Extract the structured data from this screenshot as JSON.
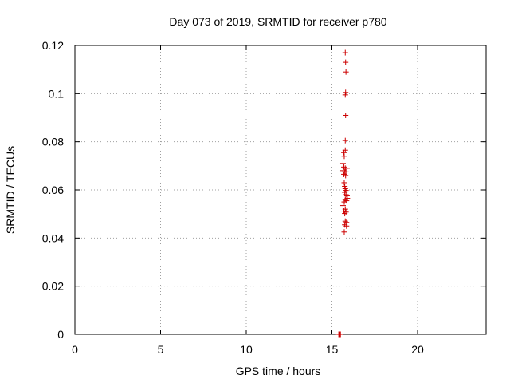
{
  "chart_data": {
    "type": "scatter",
    "title": "Day 073 of 2019, SRMTID for receiver p780",
    "xlabel": "GPS time / hours",
    "ylabel": "SRMTID / TECUs",
    "xlim": [
      0,
      24
    ],
    "ylim": [
      0,
      0.12
    ],
    "xticks": [
      "0",
      "5",
      "10",
      "15",
      "20"
    ],
    "yticks": [
      "0",
      "0.02",
      "0.04",
      "0.06",
      "0.08",
      "0.1",
      "0.12"
    ],
    "grid": true,
    "color": "#cc0000",
    "marker": "plus",
    "series": [
      {
        "points": [
          [
            15.78,
            0.117
          ],
          [
            15.8,
            0.113
          ],
          [
            15.82,
            0.109
          ],
          [
            15.8,
            0.1005
          ],
          [
            15.78,
            0.0995
          ],
          [
            15.8,
            0.091
          ],
          [
            15.78,
            0.0805
          ],
          [
            15.78,
            0.0765
          ],
          [
            15.7,
            0.0755
          ],
          [
            15.72,
            0.074
          ],
          [
            15.65,
            0.071
          ],
          [
            15.7,
            0.0695
          ],
          [
            15.78,
            0.069
          ],
          [
            15.88,
            0.069
          ],
          [
            15.65,
            0.068
          ],
          [
            15.75,
            0.0675
          ],
          [
            15.82,
            0.0675
          ],
          [
            15.7,
            0.0665
          ],
          [
            15.8,
            0.066
          ],
          [
            15.72,
            0.063
          ],
          [
            15.75,
            0.0615
          ],
          [
            15.78,
            0.0605
          ],
          [
            15.82,
            0.0598
          ],
          [
            15.75,
            0.059
          ],
          [
            15.82,
            0.058
          ],
          [
            15.88,
            0.0575
          ],
          [
            15.9,
            0.0565
          ],
          [
            15.78,
            0.056
          ],
          [
            15.85,
            0.0555
          ],
          [
            15.72,
            0.055
          ],
          [
            15.65,
            0.0535
          ],
          [
            15.78,
            0.052
          ],
          [
            15.7,
            0.0512
          ],
          [
            15.82,
            0.0508
          ],
          [
            15.75,
            0.0502
          ],
          [
            15.78,
            0.047
          ],
          [
            15.85,
            0.0465
          ],
          [
            15.75,
            0.0455
          ],
          [
            15.85,
            0.045
          ],
          [
            15.72,
            0.0425
          ],
          [
            15.4,
            0.0
          ],
          [
            15.42,
            0.0
          ],
          [
            15.45,
            0.0
          ],
          [
            15.47,
            0.0
          ],
          [
            15.5,
            0.0
          ]
        ]
      }
    ]
  }
}
